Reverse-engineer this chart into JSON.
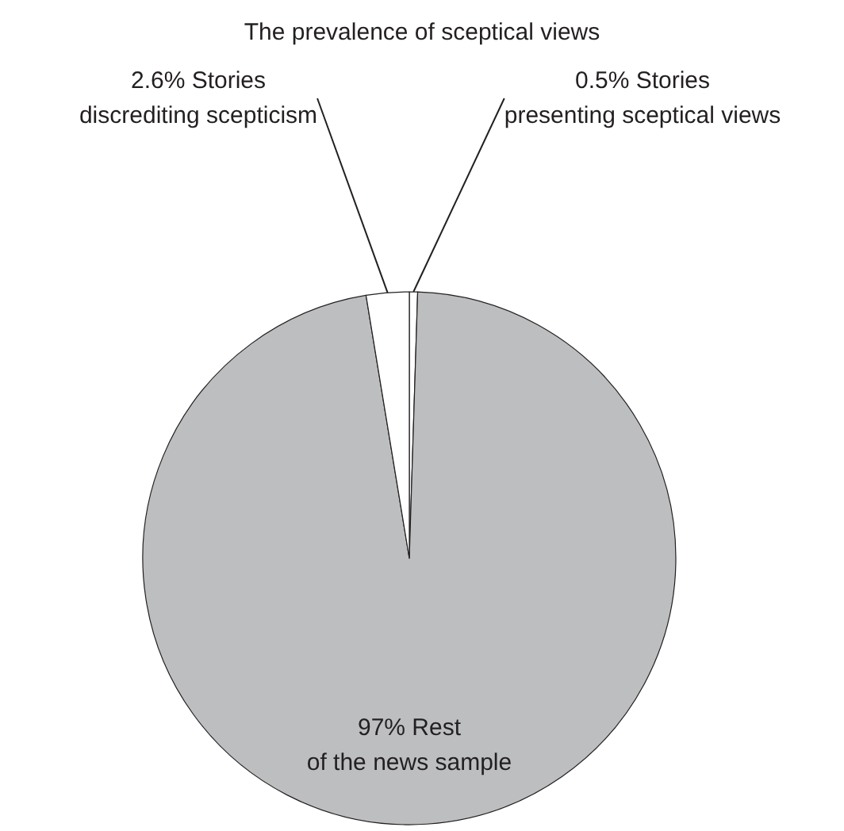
{
  "chart_data": {
    "type": "pie",
    "title": "The prevalence of sceptical views",
    "categories": [
      "Stories presenting sceptical views",
      "Rest of the news sample",
      "Stories discrediting scepticism"
    ],
    "values": [
      0.5,
      97,
      2.6
    ],
    "value_labels": [
      "0.5%",
      "97%",
      "2.6%"
    ],
    "colors": [
      "#ffffff",
      "#bcbec0",
      "#ffffff"
    ]
  }
}
